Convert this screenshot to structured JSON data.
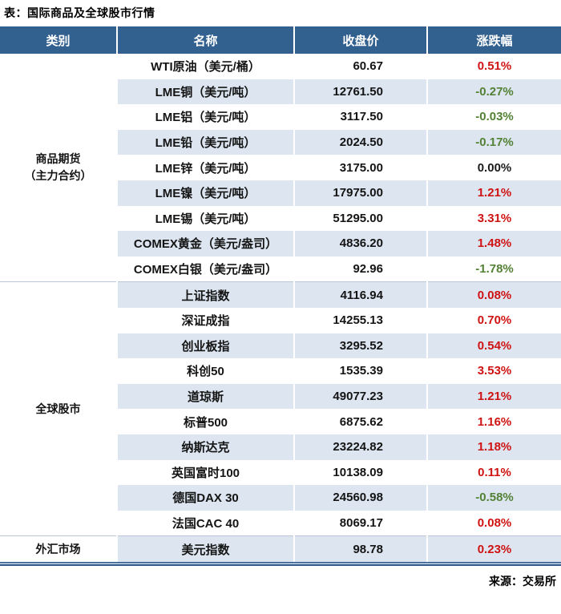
{
  "title": "表：国际商品及全球股市行情",
  "source": "来源：交易所",
  "colors": {
    "up_red": "#cf1212",
    "down_green": "#538135",
    "flat_black": "#1a1a1a",
    "header_bg": "#32608f",
    "stripe": "#dce5f0",
    "rule_navy": "#2f5b8a",
    "rule_light": "#c9d7e8"
  },
  "chart_data": {
    "type": "table",
    "title": "表：国际商品及全球股市行情",
    "columns": [
      "类别",
      "名称",
      "收盘价",
      "涨跌幅"
    ],
    "legend_note": "red = up, green = down (Chinese market convention)",
    "groups": [
      {
        "category": "商品期货\n（主力合约）",
        "rows": [
          {
            "name": "WTI原油（美元/桶）",
            "close": "60.67",
            "change": "0.51%",
            "dir": "up"
          },
          {
            "name": "LME铜（美元/吨）",
            "close": "12761.50",
            "change": "-0.27%",
            "dir": "down"
          },
          {
            "name": "LME铝（美元/吨）",
            "close": "3117.50",
            "change": "-0.03%",
            "dir": "down"
          },
          {
            "name": "LME铅（美元/吨）",
            "close": "2024.50",
            "change": "-0.17%",
            "dir": "down"
          },
          {
            "name": "LME锌（美元/吨）",
            "close": "3175.00",
            "change": "0.00%",
            "dir": "flat"
          },
          {
            "name": "LME镍（美元/吨）",
            "close": "17975.00",
            "change": "1.21%",
            "dir": "up"
          },
          {
            "name": "LME锡（美元/吨）",
            "close": "51295.00",
            "change": "3.31%",
            "dir": "up"
          },
          {
            "name": "COMEX黄金（美元/盎司）",
            "close": "4836.20",
            "change": "1.48%",
            "dir": "up"
          },
          {
            "name": "COMEX白银（美元/盎司）",
            "close": "92.96",
            "change": "-1.78%",
            "dir": "down"
          }
        ]
      },
      {
        "category": "全球股市",
        "rows": [
          {
            "name": "上证指数",
            "close": "4116.94",
            "change": "0.08%",
            "dir": "up"
          },
          {
            "name": "深证成指",
            "close": "14255.13",
            "change": "0.70%",
            "dir": "up"
          },
          {
            "name": "创业板指",
            "close": "3295.52",
            "change": "0.54%",
            "dir": "up"
          },
          {
            "name": "科创50",
            "close": "1535.39",
            "change": "3.53%",
            "dir": "up"
          },
          {
            "name": "道琼斯",
            "close": "49077.23",
            "change": "1.21%",
            "dir": "up"
          },
          {
            "name": "标普500",
            "close": "6875.62",
            "change": "1.16%",
            "dir": "up"
          },
          {
            "name": "纳斯达克",
            "close": "23224.82",
            "change": "1.18%",
            "dir": "up"
          },
          {
            "name": "英国富时100",
            "close": "10138.09",
            "change": "0.11%",
            "dir": "up"
          },
          {
            "name": "德国DAX 30",
            "close": "24560.98",
            "change": "-0.58%",
            "dir": "down"
          },
          {
            "name": "法国CAC 40",
            "close": "8069.17",
            "change": "0.08%",
            "dir": "up"
          }
        ]
      },
      {
        "category": "外汇市场",
        "rows": [
          {
            "name": "美元指数",
            "close": "98.78",
            "change": "0.23%",
            "dir": "up"
          }
        ]
      }
    ]
  }
}
